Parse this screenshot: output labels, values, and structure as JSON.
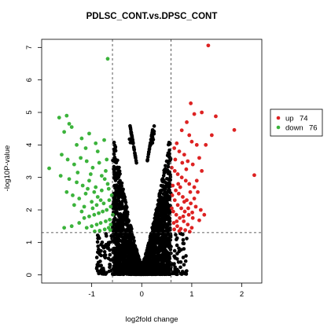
{
  "chart_data": {
    "type": "scatter",
    "title": "PDLSC_CONT.vs.DPSC_CONT",
    "xlabel": "log2fold change",
    "ylabel": "-log10P-value",
    "xlim": [
      -2.0,
      2.4
    ],
    "ylim": [
      -0.25,
      7.25
    ],
    "xticks": [
      -1,
      0,
      1,
      2
    ],
    "yticks": [
      0,
      1,
      2,
      3,
      4,
      5,
      6,
      7
    ],
    "fc_threshold": [
      -0.585,
      0.585
    ],
    "p_threshold": 1.301,
    "legend_position": "right",
    "colors": {
      "up": "#dd2222",
      "down": "#3bb33b",
      "ns": "#000000"
    },
    "series": [
      {
        "name": "up",
        "count": 74,
        "color": "#dd2222",
        "points": [
          [
            1.33,
            7.06
          ],
          [
            0.98,
            5.28
          ],
          [
            1.05,
            4.95
          ],
          [
            1.2,
            5.0
          ],
          [
            1.48,
            4.88
          ],
          [
            1.85,
            4.46
          ],
          [
            2.25,
            3.07
          ],
          [
            1.28,
            4.0
          ],
          [
            1.4,
            4.3
          ],
          [
            0.9,
            4.7
          ],
          [
            0.8,
            4.45
          ],
          [
            0.95,
            4.3
          ],
          [
            1.0,
            4.1
          ],
          [
            1.1,
            4.0
          ],
          [
            0.7,
            4.05
          ],
          [
            0.65,
            3.9
          ],
          [
            0.75,
            3.8
          ],
          [
            0.85,
            3.7
          ],
          [
            0.92,
            3.5
          ],
          [
            1.02,
            3.4
          ],
          [
            1.15,
            3.6
          ],
          [
            0.6,
            3.3
          ],
          [
            0.66,
            3.2
          ],
          [
            0.72,
            3.1
          ],
          [
            0.8,
            3.0
          ],
          [
            0.88,
            2.9
          ],
          [
            0.95,
            2.8
          ],
          [
            1.05,
            2.7
          ],
          [
            1.12,
            2.55
          ],
          [
            0.62,
            2.75
          ],
          [
            0.68,
            2.6
          ],
          [
            0.74,
            2.5
          ],
          [
            0.82,
            2.4
          ],
          [
            0.9,
            2.3
          ],
          [
            0.98,
            2.2
          ],
          [
            1.08,
            2.1
          ],
          [
            0.61,
            2.45
          ],
          [
            0.66,
            2.3
          ],
          [
            0.72,
            2.15
          ],
          [
            0.79,
            2.05
          ],
          [
            0.86,
            1.95
          ],
          [
            0.94,
            1.85
          ],
          [
            1.02,
            1.75
          ],
          [
            0.63,
            1.95
          ],
          [
            0.69,
            1.85
          ],
          [
            0.76,
            1.75
          ],
          [
            0.84,
            1.65
          ],
          [
            0.92,
            1.55
          ],
          [
            1.0,
            1.45
          ],
          [
            0.64,
            1.6
          ],
          [
            0.71,
            1.5
          ],
          [
            0.78,
            1.42
          ],
          [
            0.87,
            1.38
          ],
          [
            0.96,
            1.33
          ],
          [
            1.15,
            1.68
          ],
          [
            1.25,
            1.85
          ],
          [
            1.1,
            2.9
          ],
          [
            1.2,
            3.2
          ],
          [
            0.6,
            2.05
          ],
          [
            0.67,
            3.55
          ],
          [
            0.73,
            2.8
          ],
          [
            0.81,
            3.45
          ],
          [
            0.89,
            3.25
          ],
          [
            0.97,
            2.55
          ],
          [
            1.05,
            2.35
          ],
          [
            0.7,
            1.65
          ],
          [
            0.77,
            2.7
          ],
          [
            0.85,
            2.25
          ],
          [
            0.93,
            2.05
          ],
          [
            1.01,
            1.92
          ],
          [
            0.65,
            1.4
          ],
          [
            0.75,
            1.35
          ],
          [
            0.83,
            1.8
          ],
          [
            1.18,
            2.0
          ]
        ]
      },
      {
        "name": "down",
        "count": 76,
        "color": "#3bb33b",
        "points": [
          [
            -0.68,
            6.65
          ],
          [
            -1.85,
            3.28
          ],
          [
            -1.65,
            4.84
          ],
          [
            -1.45,
            4.65
          ],
          [
            -1.4,
            4.55
          ],
          [
            -1.5,
            4.9
          ],
          [
            -1.2,
            4.2
          ],
          [
            -1.05,
            4.35
          ],
          [
            -1.55,
            4.4
          ],
          [
            -1.3,
            4.0
          ],
          [
            -1.12,
            3.9
          ],
          [
            -0.92,
            4.05
          ],
          [
            -0.75,
            4.15
          ],
          [
            -1.6,
            3.7
          ],
          [
            -1.48,
            3.55
          ],
          [
            -1.35,
            3.4
          ],
          [
            -1.22,
            3.6
          ],
          [
            -1.1,
            3.5
          ],
          [
            -0.98,
            3.3
          ],
          [
            -0.85,
            3.45
          ],
          [
            -0.72,
            3.2
          ],
          [
            -1.62,
            3.05
          ],
          [
            -1.45,
            2.95
          ],
          [
            -1.3,
            2.85
          ],
          [
            -1.18,
            2.75
          ],
          [
            -1.05,
            2.9
          ],
          [
            -0.92,
            2.7
          ],
          [
            -0.8,
            2.6
          ],
          [
            -0.68,
            2.8
          ],
          [
            -1.5,
            2.55
          ],
          [
            -1.38,
            2.45
          ],
          [
            -1.25,
            2.35
          ],
          [
            -1.12,
            2.5
          ],
          [
            -1.0,
            2.25
          ],
          [
            -0.88,
            2.4
          ],
          [
            -0.76,
            2.2
          ],
          [
            -0.65,
            2.3
          ],
          [
            -0.62,
            2.1
          ],
          [
            -0.7,
            2.0
          ],
          [
            -0.78,
            1.95
          ],
          [
            -0.86,
            1.9
          ],
          [
            -0.95,
            1.85
          ],
          [
            -1.05,
            1.8
          ],
          [
            -1.15,
            1.75
          ],
          [
            -0.64,
            1.7
          ],
          [
            -0.72,
            1.65
          ],
          [
            -0.82,
            1.6
          ],
          [
            -0.9,
            1.55
          ],
          [
            -1.0,
            1.5
          ],
          [
            -1.1,
            1.45
          ],
          [
            -0.66,
            1.45
          ],
          [
            -0.74,
            1.4
          ],
          [
            -0.84,
            1.36
          ],
          [
            -0.94,
            1.34
          ],
          [
            -1.55,
            1.45
          ],
          [
            -1.4,
            1.5
          ],
          [
            -1.25,
            1.6
          ],
          [
            -1.15,
            2.1
          ],
          [
            -0.95,
            2.55
          ],
          [
            -0.8,
            3.05
          ],
          [
            -0.7,
            3.55
          ],
          [
            -1.35,
            2.15
          ],
          [
            -1.2,
            1.95
          ],
          [
            -0.6,
            2.45
          ],
          [
            -0.62,
            1.55
          ],
          [
            -0.66,
            2.65
          ],
          [
            -0.74,
            2.95
          ],
          [
            -0.82,
            2.3
          ],
          [
            -0.9,
            2.15
          ],
          [
            -0.98,
            2.05
          ],
          [
            -1.08,
            2.65
          ],
          [
            -1.28,
            3.15
          ],
          [
            -0.58,
            1.85
          ],
          [
            -0.63,
            1.38
          ],
          [
            -0.88,
            3.8
          ],
          [
            -1.02,
            3.1
          ]
        ]
      }
    ]
  }
}
